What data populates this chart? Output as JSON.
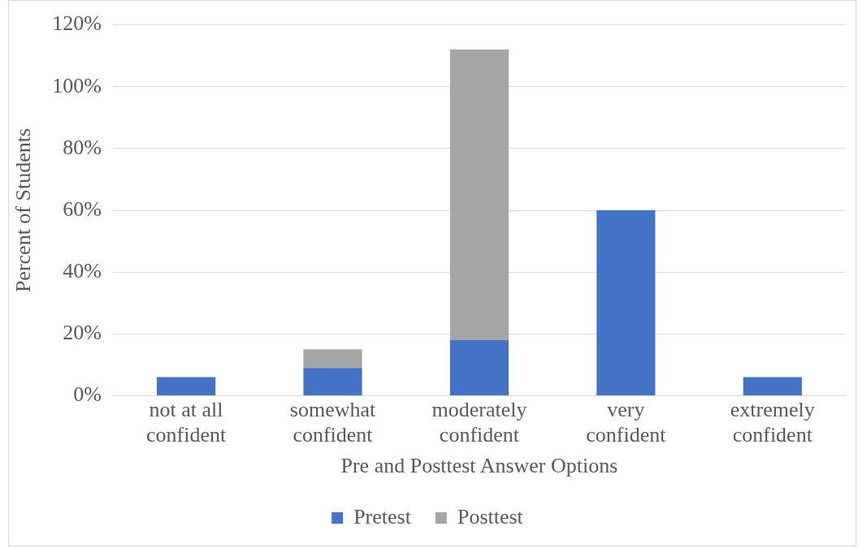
{
  "chart_data": {
    "type": "bar",
    "stacked": true,
    "xlabel": "Pre and Posttest Answer Options",
    "ylabel": "Percent of Students",
    "categories": [
      "not at all confident",
      "somewhat confident",
      "moderately confident",
      "very confident",
      "extremely confident"
    ],
    "series": [
      {
        "name": "Pretest",
        "color": "#4472c4",
        "values": [
          6,
          9,
          18,
          60,
          6
        ]
      },
      {
        "name": "Posttest",
        "color": "#a5a5a5",
        "values": [
          0,
          6,
          94,
          0,
          0
        ]
      }
    ],
    "ylim": [
      0,
      120
    ],
    "yticks": [
      {
        "value": 0,
        "label": "0%"
      },
      {
        "value": 20,
        "label": "20%"
      },
      {
        "value": 40,
        "label": "40%"
      },
      {
        "value": 60,
        "label": "60%"
      },
      {
        "value": 80,
        "label": "80%"
      },
      {
        "value": 100,
        "label": "100%"
      },
      {
        "value": 120,
        "label": "120%"
      }
    ],
    "grid": "y",
    "legend": "bottom"
  }
}
